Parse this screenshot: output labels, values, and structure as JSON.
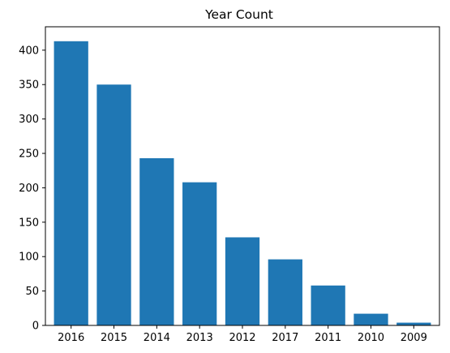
{
  "chart_data": {
    "type": "bar",
    "title": "Year Count",
    "xlabel": "",
    "ylabel": "",
    "categories": [
      "2016",
      "2015",
      "2014",
      "2013",
      "2012",
      "2017",
      "2011",
      "2010",
      "2009"
    ],
    "values": [
      413,
      350,
      243,
      208,
      128,
      96,
      58,
      17,
      4
    ],
    "ylim": [
      0,
      434
    ],
    "yticks": [
      0,
      50,
      100,
      150,
      200,
      250,
      300,
      350,
      400
    ],
    "grid": false,
    "legend": "none",
    "bar_color": "#1f77b4"
  }
}
